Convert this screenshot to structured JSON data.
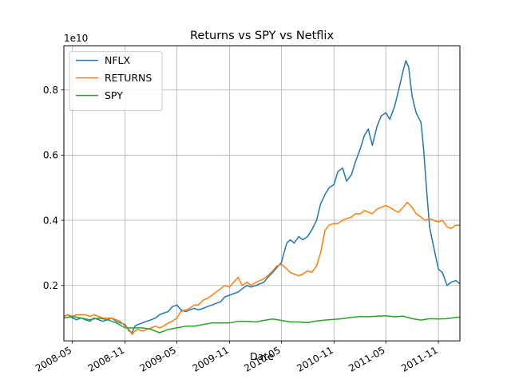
{
  "chart_data": {
    "type": "line",
    "title": "Returns vs SPY vs Netflix",
    "xlabel": "Date",
    "ylabel": "",
    "y_offset_label": "1e10",
    "xlim": [
      "2008-04-01",
      "2012-01-15"
    ],
    "ylim": [
      0.03,
      0.935
    ],
    "x_ticks": [
      {
        "date": "2008-05-01",
        "label": "2008-05"
      },
      {
        "date": "2008-11-01",
        "label": "2008-11"
      },
      {
        "date": "2009-05-01",
        "label": "2009-05"
      },
      {
        "date": "2009-11-01",
        "label": "2009-11"
      },
      {
        "date": "2010-05-01",
        "label": "2010-05"
      },
      {
        "date": "2010-11-01",
        "label": "2010-11"
      },
      {
        "date": "2011-05-01",
        "label": "2011-05"
      },
      {
        "date": "2011-11-01",
        "label": "2011-11"
      }
    ],
    "y_ticks": [
      {
        "value": 0.2,
        "label": "0.2"
      },
      {
        "value": 0.4,
        "label": "0.4"
      },
      {
        "value": 0.6,
        "label": "0.6"
      },
      {
        "value": 0.8,
        "label": "0.8"
      }
    ],
    "grid": true,
    "legend_position": "top-left",
    "series": [
      {
        "name": "NFLX",
        "color": "#1f77b4",
        "points": [
          [
            "2008-04-01",
            0.105
          ],
          [
            "2008-04-15",
            0.11
          ],
          [
            "2008-05-01",
            0.1
          ],
          [
            "2008-05-15",
            0.095
          ],
          [
            "2008-06-01",
            0.1
          ],
          [
            "2008-06-15",
            0.095
          ],
          [
            "2008-07-01",
            0.09
          ],
          [
            "2008-07-15",
            0.1
          ],
          [
            "2008-08-01",
            0.095
          ],
          [
            "2008-08-15",
            0.09
          ],
          [
            "2008-09-01",
            0.095
          ],
          [
            "2008-09-15",
            0.1
          ],
          [
            "2008-10-01",
            0.09
          ],
          [
            "2008-10-15",
            0.085
          ],
          [
            "2008-11-01",
            0.08
          ],
          [
            "2008-11-15",
            0.06
          ],
          [
            "2008-11-25",
            0.055
          ],
          [
            "2008-12-05",
            0.075
          ],
          [
            "2008-12-15",
            0.08
          ],
          [
            "2009-01-01",
            0.085
          ],
          [
            "2009-01-15",
            0.09
          ],
          [
            "2009-02-01",
            0.095
          ],
          [
            "2009-02-15",
            0.1
          ],
          [
            "2009-03-01",
            0.11
          ],
          [
            "2009-03-15",
            0.115
          ],
          [
            "2009-04-01",
            0.12
          ],
          [
            "2009-04-15",
            0.135
          ],
          [
            "2009-05-01",
            0.14
          ],
          [
            "2009-05-15",
            0.125
          ],
          [
            "2009-06-01",
            0.12
          ],
          [
            "2009-06-15",
            0.125
          ],
          [
            "2009-07-01",
            0.13
          ],
          [
            "2009-07-15",
            0.125
          ],
          [
            "2009-08-01",
            0.13
          ],
          [
            "2009-08-15",
            0.135
          ],
          [
            "2009-09-01",
            0.14
          ],
          [
            "2009-09-15",
            0.145
          ],
          [
            "2009-10-01",
            0.15
          ],
          [
            "2009-10-15",
            0.165
          ],
          [
            "2009-11-01",
            0.17
          ],
          [
            "2009-11-15",
            0.175
          ],
          [
            "2009-12-01",
            0.18
          ],
          [
            "2009-12-15",
            0.19
          ],
          [
            "2010-01-01",
            0.2
          ],
          [
            "2010-01-15",
            0.195
          ],
          [
            "2010-02-01",
            0.2
          ],
          [
            "2010-02-15",
            0.205
          ],
          [
            "2010-03-01",
            0.21
          ],
          [
            "2010-03-15",
            0.225
          ],
          [
            "2010-04-01",
            0.24
          ],
          [
            "2010-04-15",
            0.255
          ],
          [
            "2010-05-01",
            0.27
          ],
          [
            "2010-05-10",
            0.3
          ],
          [
            "2010-05-20",
            0.33
          ],
          [
            "2010-06-01",
            0.34
          ],
          [
            "2010-06-15",
            0.33
          ],
          [
            "2010-07-01",
            0.35
          ],
          [
            "2010-07-15",
            0.34
          ],
          [
            "2010-08-01",
            0.35
          ],
          [
            "2010-08-15",
            0.37
          ],
          [
            "2010-09-01",
            0.4
          ],
          [
            "2010-09-15",
            0.45
          ],
          [
            "2010-10-01",
            0.48
          ],
          [
            "2010-10-15",
            0.5
          ],
          [
            "2010-11-01",
            0.51
          ],
          [
            "2010-11-15",
            0.55
          ],
          [
            "2010-12-01",
            0.56
          ],
          [
            "2010-12-15",
            0.52
          ],
          [
            "2011-01-01",
            0.54
          ],
          [
            "2011-01-15",
            0.58
          ],
          [
            "2011-02-01",
            0.62
          ],
          [
            "2011-02-15",
            0.66
          ],
          [
            "2011-03-01",
            0.68
          ],
          [
            "2011-03-15",
            0.63
          ],
          [
            "2011-04-01",
            0.69
          ],
          [
            "2011-04-15",
            0.72
          ],
          [
            "2011-05-01",
            0.73
          ],
          [
            "2011-05-15",
            0.71
          ],
          [
            "2011-06-01",
            0.75
          ],
          [
            "2011-06-15",
            0.8
          ],
          [
            "2011-07-01",
            0.86
          ],
          [
            "2011-07-10",
            0.89
          ],
          [
            "2011-07-20",
            0.87
          ],
          [
            "2011-08-01",
            0.78
          ],
          [
            "2011-08-15",
            0.73
          ],
          [
            "2011-09-01",
            0.7
          ],
          [
            "2011-09-10",
            0.62
          ],
          [
            "2011-09-20",
            0.5
          ],
          [
            "2011-10-01",
            0.38
          ],
          [
            "2011-10-15",
            0.32
          ],
          [
            "2011-11-01",
            0.25
          ],
          [
            "2011-11-15",
            0.24
          ],
          [
            "2011-12-01",
            0.2
          ],
          [
            "2011-12-15",
            0.21
          ],
          [
            "2012-01-01",
            0.215
          ],
          [
            "2012-01-15",
            0.205
          ]
        ]
      },
      {
        "name": "RETURNS",
        "color": "#ff7f0e",
        "points": [
          [
            "2008-04-01",
            0.105
          ],
          [
            "2008-04-15",
            0.11
          ],
          [
            "2008-05-01",
            0.105
          ],
          [
            "2008-05-15",
            0.11
          ],
          [
            "2008-06-01",
            0.11
          ],
          [
            "2008-06-15",
            0.11
          ],
          [
            "2008-07-01",
            0.105
          ],
          [
            "2008-07-15",
            0.11
          ],
          [
            "2008-08-01",
            0.105
          ],
          [
            "2008-08-15",
            0.1
          ],
          [
            "2008-09-01",
            0.1
          ],
          [
            "2008-09-15",
            0.1
          ],
          [
            "2008-10-01",
            0.095
          ],
          [
            "2008-10-15",
            0.09
          ],
          [
            "2008-11-01",
            0.075
          ],
          [
            "2008-11-15",
            0.065
          ],
          [
            "2008-11-25",
            0.05
          ],
          [
            "2008-12-05",
            0.06
          ],
          [
            "2008-12-15",
            0.065
          ],
          [
            "2009-01-01",
            0.06
          ],
          [
            "2009-01-15",
            0.065
          ],
          [
            "2009-02-01",
            0.07
          ],
          [
            "2009-02-15",
            0.075
          ],
          [
            "2009-03-01",
            0.07
          ],
          [
            "2009-03-15",
            0.075
          ],
          [
            "2009-04-01",
            0.085
          ],
          [
            "2009-04-15",
            0.09
          ],
          [
            "2009-05-01",
            0.1
          ],
          [
            "2009-05-15",
            0.12
          ],
          [
            "2009-06-01",
            0.125
          ],
          [
            "2009-06-15",
            0.13
          ],
          [
            "2009-07-01",
            0.14
          ],
          [
            "2009-07-15",
            0.14
          ],
          [
            "2009-08-01",
            0.155
          ],
          [
            "2009-08-15",
            0.16
          ],
          [
            "2009-09-01",
            0.17
          ],
          [
            "2009-09-15",
            0.18
          ],
          [
            "2009-10-01",
            0.19
          ],
          [
            "2009-10-15",
            0.2
          ],
          [
            "2009-11-01",
            0.195
          ],
          [
            "2009-11-15",
            0.21
          ],
          [
            "2009-12-01",
            0.225
          ],
          [
            "2009-12-15",
            0.2
          ],
          [
            "2010-01-01",
            0.21
          ],
          [
            "2010-01-15",
            0.2
          ],
          [
            "2010-02-01",
            0.21
          ],
          [
            "2010-02-15",
            0.215
          ],
          [
            "2010-03-01",
            0.22
          ],
          [
            "2010-03-15",
            0.23
          ],
          [
            "2010-04-01",
            0.245
          ],
          [
            "2010-04-15",
            0.26
          ],
          [
            "2010-05-01",
            0.265
          ],
          [
            "2010-05-15",
            0.255
          ],
          [
            "2010-06-01",
            0.24
          ],
          [
            "2010-06-15",
            0.235
          ],
          [
            "2010-07-01",
            0.23
          ],
          [
            "2010-07-15",
            0.235
          ],
          [
            "2010-08-01",
            0.245
          ],
          [
            "2010-08-15",
            0.24
          ],
          [
            "2010-09-01",
            0.26
          ],
          [
            "2010-09-15",
            0.3
          ],
          [
            "2010-10-01",
            0.37
          ],
          [
            "2010-10-15",
            0.385
          ],
          [
            "2010-11-01",
            0.39
          ],
          [
            "2010-11-15",
            0.39
          ],
          [
            "2010-12-01",
            0.4
          ],
          [
            "2010-12-15",
            0.405
          ],
          [
            "2011-01-01",
            0.41
          ],
          [
            "2011-01-15",
            0.42
          ],
          [
            "2011-02-01",
            0.42
          ],
          [
            "2011-02-15",
            0.43
          ],
          [
            "2011-03-01",
            0.425
          ],
          [
            "2011-03-15",
            0.42
          ],
          [
            "2011-04-01",
            0.435
          ],
          [
            "2011-04-15",
            0.44
          ],
          [
            "2011-05-01",
            0.445
          ],
          [
            "2011-05-15",
            0.44
          ],
          [
            "2011-06-01",
            0.43
          ],
          [
            "2011-06-15",
            0.425
          ],
          [
            "2011-07-01",
            0.44
          ],
          [
            "2011-07-15",
            0.455
          ],
          [
            "2011-08-01",
            0.44
          ],
          [
            "2011-08-15",
            0.42
          ],
          [
            "2011-09-01",
            0.41
          ],
          [
            "2011-09-15",
            0.4
          ],
          [
            "2011-10-01",
            0.405
          ],
          [
            "2011-10-15",
            0.4
          ],
          [
            "2011-11-01",
            0.395
          ],
          [
            "2011-11-15",
            0.4
          ],
          [
            "2011-12-01",
            0.38
          ],
          [
            "2011-12-15",
            0.375
          ],
          [
            "2012-01-01",
            0.385
          ],
          [
            "2012-01-15",
            0.385
          ]
        ]
      },
      {
        "name": "SPY",
        "color": "#2ca02c",
        "points": [
          [
            "2008-04-01",
            0.1
          ],
          [
            "2008-05-01",
            0.105
          ],
          [
            "2008-06-01",
            0.1
          ],
          [
            "2008-07-01",
            0.095
          ],
          [
            "2008-08-01",
            0.1
          ],
          [
            "2008-09-01",
            0.095
          ],
          [
            "2008-10-01",
            0.085
          ],
          [
            "2008-11-01",
            0.07
          ],
          [
            "2008-12-01",
            0.07
          ],
          [
            "2009-01-01",
            0.07
          ],
          [
            "2009-02-01",
            0.065
          ],
          [
            "2009-03-01",
            0.055
          ],
          [
            "2009-04-01",
            0.065
          ],
          [
            "2009-05-01",
            0.07
          ],
          [
            "2009-06-01",
            0.075
          ],
          [
            "2009-07-01",
            0.075
          ],
          [
            "2009-08-01",
            0.08
          ],
          [
            "2009-09-01",
            0.085
          ],
          [
            "2009-10-01",
            0.085
          ],
          [
            "2009-11-01",
            0.085
          ],
          [
            "2009-12-01",
            0.09
          ],
          [
            "2010-01-01",
            0.09
          ],
          [
            "2010-02-01",
            0.088
          ],
          [
            "2010-03-01",
            0.093
          ],
          [
            "2010-04-01",
            0.097
          ],
          [
            "2010-05-01",
            0.093
          ],
          [
            "2010-06-01",
            0.088
          ],
          [
            "2010-07-01",
            0.088
          ],
          [
            "2010-08-01",
            0.086
          ],
          [
            "2010-09-01",
            0.091
          ],
          [
            "2010-10-01",
            0.094
          ],
          [
            "2010-11-01",
            0.096
          ],
          [
            "2010-12-01",
            0.098
          ],
          [
            "2011-01-01",
            0.102
          ],
          [
            "2011-02-01",
            0.105
          ],
          [
            "2011-03-01",
            0.104
          ],
          [
            "2011-04-01",
            0.106
          ],
          [
            "2011-05-01",
            0.107
          ],
          [
            "2011-06-01",
            0.104
          ],
          [
            "2011-07-01",
            0.106
          ],
          [
            "2011-08-01",
            0.098
          ],
          [
            "2011-09-01",
            0.094
          ],
          [
            "2011-10-01",
            0.098
          ],
          [
            "2011-11-01",
            0.097
          ],
          [
            "2011-12-01",
            0.098
          ],
          [
            "2012-01-01",
            0.102
          ],
          [
            "2012-01-15",
            0.103
          ]
        ]
      }
    ]
  }
}
